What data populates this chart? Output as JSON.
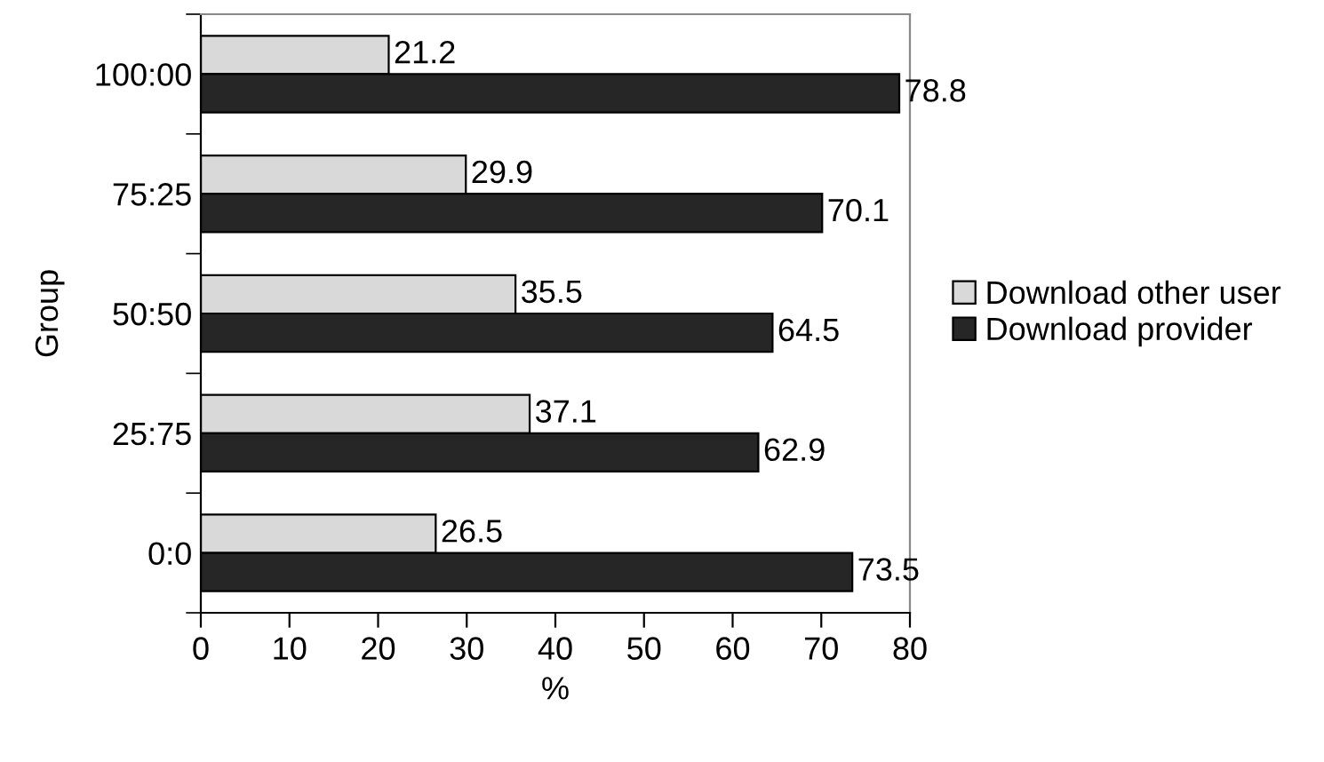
{
  "chart_data": {
    "type": "bar",
    "orientation": "horizontal",
    "xlabel": "%",
    "ylabel": "Group",
    "categories": [
      "100:00",
      "75:25",
      "50:50",
      "25:75",
      "0:0"
    ],
    "series": [
      {
        "name": "Download other user",
        "color": "#d9d9d9",
        "values": [
          21.2,
          29.9,
          35.5,
          37.1,
          26.5
        ]
      },
      {
        "name": "Download provider",
        "color": "#262626",
        "values": [
          78.8,
          70.1,
          64.5,
          62.9,
          73.5
        ]
      }
    ],
    "xlim": [
      0,
      80
    ],
    "xticks": [
      0,
      10,
      20,
      30,
      40,
      50,
      60,
      70,
      80
    ],
    "data_labels": true,
    "grid": false,
    "legend": "right"
  }
}
